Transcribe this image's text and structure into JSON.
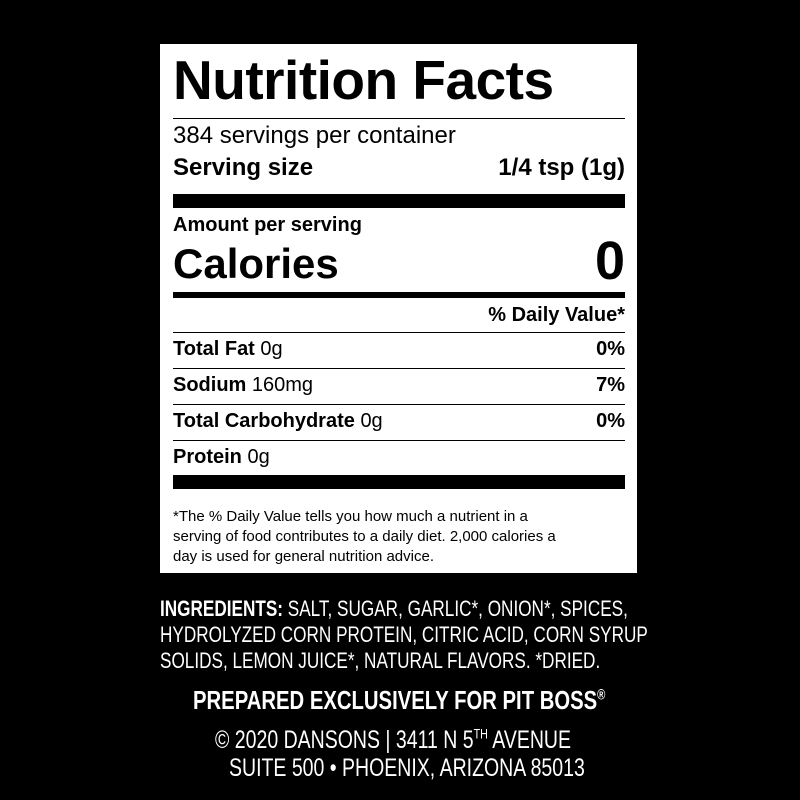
{
  "label": {
    "title": "Nutrition Facts",
    "servings": "384 servings per container",
    "serving_size_label": "Serving size",
    "serving_size_value": "1/4 tsp (1g)",
    "amount_per_serving": "Amount per serving",
    "calories_label": "Calories",
    "calories_value": "0",
    "dv_header": "% Daily Value*",
    "nutrients": [
      {
        "name": "Total Fat",
        "amount": "0g",
        "dv": "0%"
      },
      {
        "name": "Sodium",
        "amount": "160mg",
        "dv": "7%"
      },
      {
        "name": "Total Carbohydrate",
        "amount": "0g",
        "dv": "0%"
      },
      {
        "name": "Protein",
        "amount": "0g",
        "dv": ""
      }
    ],
    "footnote": [
      "*The % Daily Value tells you how much a nutrient in a",
      "serving of food contributes to a daily diet. 2,000 calories a",
      "day is used for general nutrition advice."
    ]
  },
  "ingredients": {
    "label": "INGREDIENTS:",
    "lines": [
      " SALT, SUGAR, GARLIC*, ONION*, SPICES,",
      "HYDROLYZED CORN PROTEIN, CITRIC ACID, CORN SYRUP",
      "SOLIDS, LEMON JUICE*, NATURAL FLAVORS. *DRIED."
    ]
  },
  "footer": {
    "prepared": "PREPARED EXCLUSIVELY FOR PIT BOSS",
    "registered": "®",
    "address1_a": "© 2020 DANSONS  |  3411 N 5",
    "address1_sup": "TH",
    "address1_b": " AVENUE",
    "address2": "SUITE 500 • PHOENIX, ARIZONA 85013"
  }
}
